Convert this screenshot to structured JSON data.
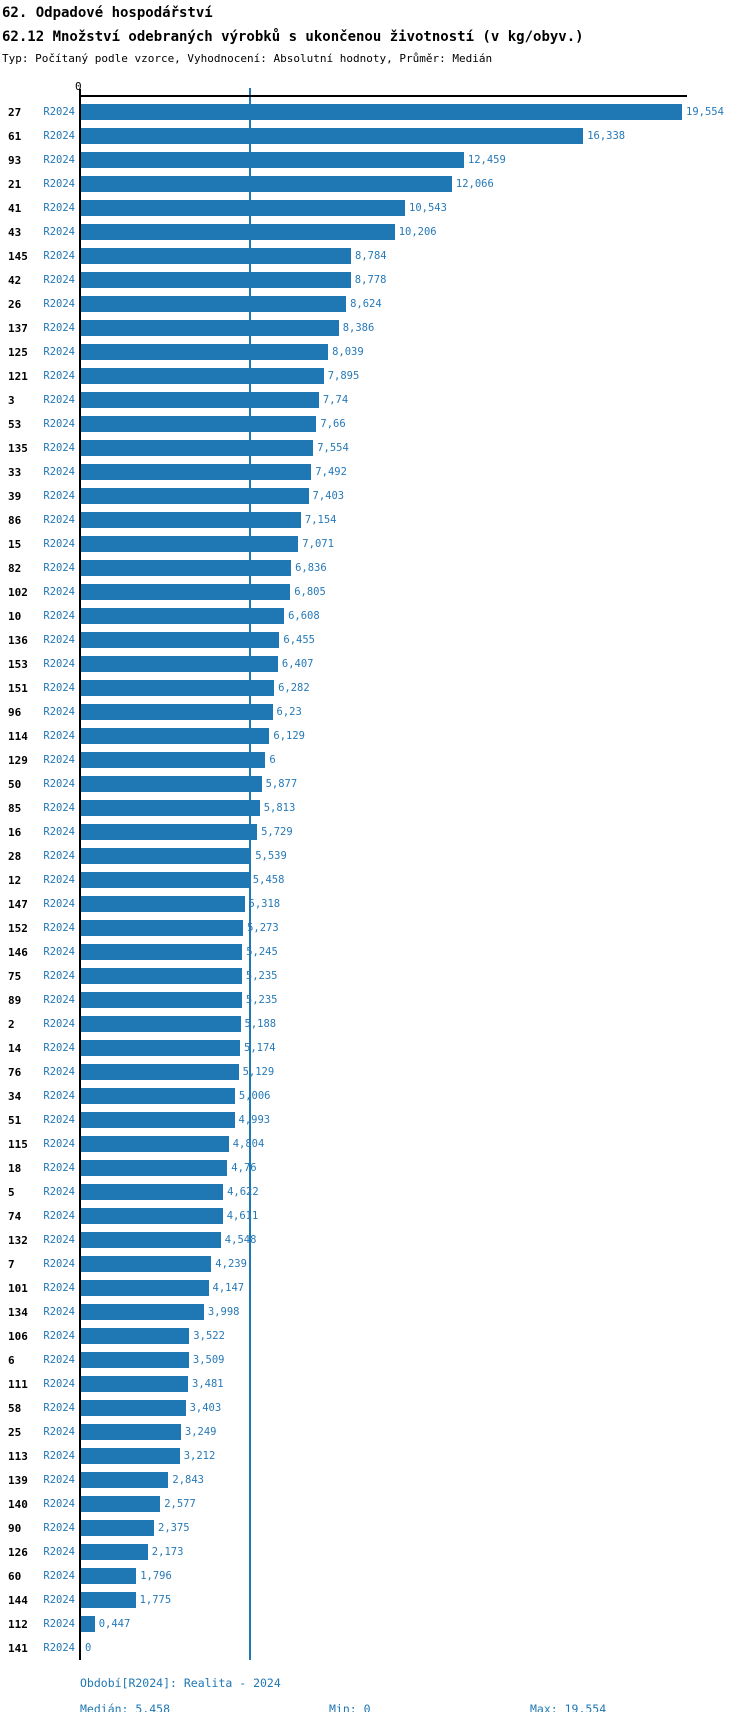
{
  "header": {
    "title": "62. Odpadové hospodářství",
    "subtitle": "62.12 Množství odebraných výrobků s ukončenou životností (v kg/obyv.)",
    "meta": "Typ: Počítaný podle vzorce, Vyhodnocení: Absolutní hodnoty, Průměr: Medián"
  },
  "chart_data": {
    "type": "bar",
    "orientation": "horizontal",
    "title": "62.12 Množství odebraných výrobků s ukončenou životností (v kg/obyv.)",
    "period_label": "R2024",
    "zero_tick_label": "0",
    "bar_color": "#1f77b4",
    "median_value": 5.458,
    "axis_range": [
      0,
      19.554
    ],
    "rows": [
      {
        "id": "27",
        "value": 19.554,
        "value_label": "19,554"
      },
      {
        "id": "61",
        "value": 16.338,
        "value_label": "16,338"
      },
      {
        "id": "93",
        "value": 12.459,
        "value_label": "12,459"
      },
      {
        "id": "21",
        "value": 12.066,
        "value_label": "12,066"
      },
      {
        "id": "41",
        "value": 10.543,
        "value_label": "10,543"
      },
      {
        "id": "43",
        "value": 10.206,
        "value_label": "10,206"
      },
      {
        "id": "145",
        "value": 8.784,
        "value_label": "8,784"
      },
      {
        "id": "42",
        "value": 8.778,
        "value_label": "8,778"
      },
      {
        "id": "26",
        "value": 8.624,
        "value_label": "8,624"
      },
      {
        "id": "137",
        "value": 8.386,
        "value_label": "8,386"
      },
      {
        "id": "125",
        "value": 8.039,
        "value_label": "8,039"
      },
      {
        "id": "121",
        "value": 7.895,
        "value_label": "7,895"
      },
      {
        "id": "3",
        "value": 7.74,
        "value_label": "7,74"
      },
      {
        "id": "53",
        "value": 7.66,
        "value_label": "7,66"
      },
      {
        "id": "135",
        "value": 7.554,
        "value_label": "7,554"
      },
      {
        "id": "33",
        "value": 7.492,
        "value_label": "7,492"
      },
      {
        "id": "39",
        "value": 7.403,
        "value_label": "7,403"
      },
      {
        "id": "86",
        "value": 7.154,
        "value_label": "7,154"
      },
      {
        "id": "15",
        "value": 7.071,
        "value_label": "7,071"
      },
      {
        "id": "82",
        "value": 6.836,
        "value_label": "6,836"
      },
      {
        "id": "102",
        "value": 6.805,
        "value_label": "6,805"
      },
      {
        "id": "10",
        "value": 6.608,
        "value_label": "6,608"
      },
      {
        "id": "136",
        "value": 6.455,
        "value_label": "6,455"
      },
      {
        "id": "153",
        "value": 6.407,
        "value_label": "6,407"
      },
      {
        "id": "151",
        "value": 6.282,
        "value_label": "6,282"
      },
      {
        "id": "96",
        "value": 6.23,
        "value_label": "6,23"
      },
      {
        "id": "114",
        "value": 6.129,
        "value_label": "6,129"
      },
      {
        "id": "129",
        "value": 6.0,
        "value_label": "6"
      },
      {
        "id": "50",
        "value": 5.877,
        "value_label": "5,877"
      },
      {
        "id": "85",
        "value": 5.813,
        "value_label": "5,813"
      },
      {
        "id": "16",
        "value": 5.729,
        "value_label": "5,729"
      },
      {
        "id": "28",
        "value": 5.539,
        "value_label": "5,539"
      },
      {
        "id": "12",
        "value": 5.458,
        "value_label": "5,458"
      },
      {
        "id": "147",
        "value": 5.318,
        "value_label": "5,318"
      },
      {
        "id": "152",
        "value": 5.273,
        "value_label": "5,273"
      },
      {
        "id": "146",
        "value": 5.245,
        "value_label": "5,245"
      },
      {
        "id": "75",
        "value": 5.235,
        "value_label": "5,235"
      },
      {
        "id": "89",
        "value": 5.235,
        "value_label": "5,235"
      },
      {
        "id": "2",
        "value": 5.188,
        "value_label": "5,188"
      },
      {
        "id": "14",
        "value": 5.174,
        "value_label": "5,174"
      },
      {
        "id": "76",
        "value": 5.129,
        "value_label": "5,129"
      },
      {
        "id": "34",
        "value": 5.006,
        "value_label": "5,006"
      },
      {
        "id": "51",
        "value": 4.993,
        "value_label": "4,993"
      },
      {
        "id": "115",
        "value": 4.804,
        "value_label": "4,804"
      },
      {
        "id": "18",
        "value": 4.76,
        "value_label": "4,76"
      },
      {
        "id": "5",
        "value": 4.622,
        "value_label": "4,622"
      },
      {
        "id": "74",
        "value": 4.611,
        "value_label": "4,611"
      },
      {
        "id": "132",
        "value": 4.548,
        "value_label": "4,548"
      },
      {
        "id": "7",
        "value": 4.239,
        "value_label": "4,239"
      },
      {
        "id": "101",
        "value": 4.147,
        "value_label": "4,147"
      },
      {
        "id": "134",
        "value": 3.998,
        "value_label": "3,998"
      },
      {
        "id": "106",
        "value": 3.522,
        "value_label": "3,522"
      },
      {
        "id": "6",
        "value": 3.509,
        "value_label": "3,509"
      },
      {
        "id": "111",
        "value": 3.481,
        "value_label": "3,481"
      },
      {
        "id": "58",
        "value": 3.403,
        "value_label": "3,403"
      },
      {
        "id": "25",
        "value": 3.249,
        "value_label": "3,249"
      },
      {
        "id": "113",
        "value": 3.212,
        "value_label": "3,212"
      },
      {
        "id": "139",
        "value": 2.843,
        "value_label": "2,843"
      },
      {
        "id": "140",
        "value": 2.577,
        "value_label": "2,577"
      },
      {
        "id": "90",
        "value": 2.375,
        "value_label": "2,375"
      },
      {
        "id": "126",
        "value": 2.173,
        "value_label": "2,173"
      },
      {
        "id": "60",
        "value": 1.796,
        "value_label": "1,796"
      },
      {
        "id": "144",
        "value": 1.775,
        "value_label": "1,775"
      },
      {
        "id": "112",
        "value": 0.447,
        "value_label": "0,447"
      },
      {
        "id": "141",
        "value": 0,
        "value_label": "0"
      }
    ]
  },
  "footer": {
    "period_line": "Období[R2024]: Realita - 2024",
    "median": "Medián: 5,458",
    "min": "Min: 0",
    "max": "Max: 19,554"
  },
  "colors": {
    "accent": "#1f77b4",
    "text": "#000000"
  }
}
